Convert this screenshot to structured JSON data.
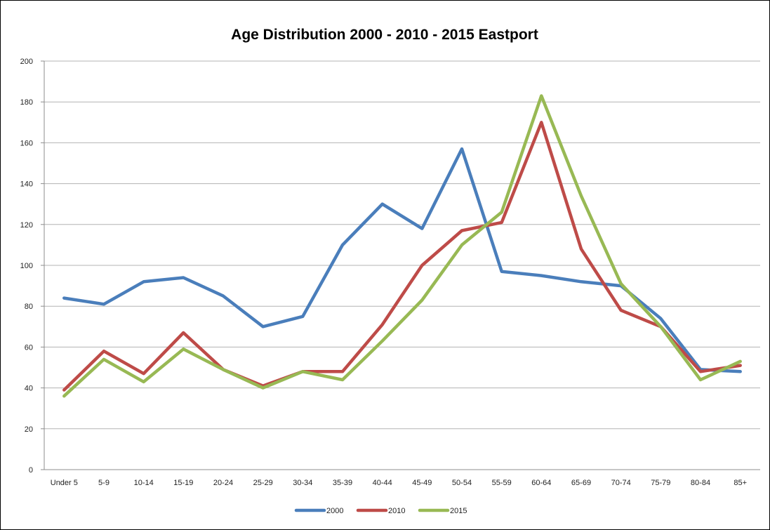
{
  "chart_data": {
    "type": "line",
    "title": "Age Distribution 2000 - 2010 - 2015 Eastport",
    "xlabel": "",
    "ylabel": "",
    "categories": [
      "Under 5",
      "5-9",
      "10-14",
      "15-19",
      "20-24",
      "25-29",
      "30-34",
      "35-39",
      "40-44",
      "45-49",
      "50-54",
      "55-59",
      "60-64",
      "65-69",
      "70-74",
      "75-79",
      "80-84",
      "85+"
    ],
    "ylim": [
      0,
      200
    ],
    "yticks": [
      0,
      20,
      40,
      60,
      80,
      100,
      120,
      140,
      160,
      180,
      200
    ],
    "grid": true,
    "legend_position": "bottom",
    "series": [
      {
        "name": "2000",
        "color": "#4a7ebb",
        "values": [
          84,
          81,
          92,
          94,
          85,
          70,
          75,
          110,
          130,
          118,
          157,
          97,
          95,
          92,
          90,
          74,
          49,
          48
        ]
      },
      {
        "name": "2010",
        "color": "#be4b48",
        "values": [
          39,
          58,
          47,
          67,
          49,
          41,
          48,
          48,
          71,
          100,
          117,
          121,
          170,
          108,
          78,
          70,
          48,
          51
        ]
      },
      {
        "name": "2015",
        "color": "#98b954",
        "values": [
          36,
          54,
          43,
          59,
          49,
          40,
          48,
          44,
          63,
          83,
          110,
          126,
          183,
          134,
          91,
          70,
          44,
          53
        ]
      }
    ]
  }
}
